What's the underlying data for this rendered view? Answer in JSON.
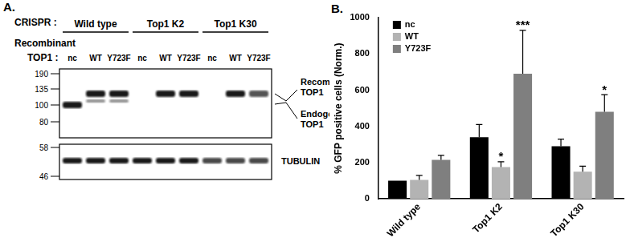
{
  "blot": {
    "label": "A.",
    "crispr_label": "CRISPR :",
    "recombinant_label": [
      "Recombinant",
      "TOP1 :"
    ],
    "groups": [
      {
        "name": "Wild type",
        "lanes": [
          {
            "label": "nc",
            "recombinant": false,
            "endogenous": true
          },
          {
            "label": "WT",
            "recombinant": true,
            "endogenous": true
          },
          {
            "label": "Y723F",
            "recombinant": true,
            "endogenous": true
          }
        ]
      },
      {
        "name": "Top1 K2",
        "lanes": [
          {
            "label": "nc",
            "recombinant": false,
            "endogenous": false
          },
          {
            "label": "WT",
            "recombinant": true,
            "endogenous": false
          },
          {
            "label": "Y723F",
            "recombinant": true,
            "endogenous": false
          }
        ]
      },
      {
        "name": "Top1 K30",
        "lanes": [
          {
            "label": "nc",
            "recombinant": false,
            "endogenous": false
          },
          {
            "label": "WT",
            "recombinant": true,
            "endogenous": false
          },
          {
            "label": "Y723F",
            "recombinant": true,
            "endogenous": false
          }
        ]
      }
    ],
    "markers_top": [
      "190",
      "135",
      "100",
      "80"
    ],
    "markers_bottom": [
      "58",
      "46"
    ],
    "band_labels": {
      "recombinant": [
        "Recombinant",
        "TOP1"
      ],
      "endogenous": [
        "Endogenous",
        "TOP1"
      ],
      "loading": "TUBULIN"
    }
  },
  "chart_data": {
    "type": "bar",
    "title": "B.",
    "y_label": "% GFP positive cells (Norm.)",
    "categories": [
      "Wild type",
      "Top1 K2",
      "Top1 K30"
    ],
    "series": [
      {
        "name": "nc",
        "color": "#000000",
        "values": [
          100,
          340,
          290
        ],
        "errors": [
          0,
          70,
          40
        ],
        "significance": [
          null,
          null,
          null
        ]
      },
      {
        "name": "WT",
        "color": "#b3b3b3",
        "values": [
          105,
          175,
          150
        ],
        "errors": [
          25,
          30,
          30
        ],
        "significance": [
          null,
          "*",
          null
        ]
      },
      {
        "name": "Y723F",
        "color": "#7f7f7f",
        "values": [
          215,
          690,
          480
        ],
        "errors": [
          25,
          240,
          95
        ],
        "significance": [
          null,
          "***",
          "*"
        ]
      }
    ],
    "ylim": [
      0,
      1000
    ],
    "yticks": [
      0,
      200,
      400,
      600,
      800,
      1000
    ],
    "grid": false,
    "legend": "upper left"
  }
}
